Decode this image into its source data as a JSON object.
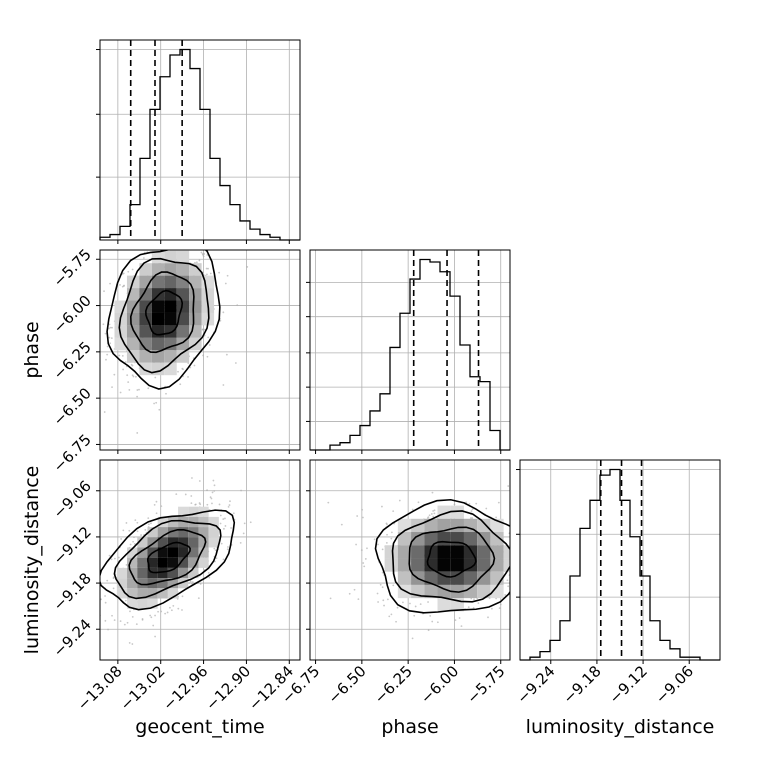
{
  "chart_data": {
    "type": "corner",
    "parameters": [
      "geocent_time",
      "phase",
      "luminosity_distance"
    ],
    "grid": true,
    "quantiles_shown": [
      0.16,
      0.5,
      0.84
    ],
    "colors": {
      "hist": "#000000",
      "points": "#b0b0b0",
      "grid": "#b0b0b0",
      "density_dark": "#000000",
      "density_light": "#ffffff"
    },
    "histograms": [
      {
        "param": "geocent_time",
        "range": [
          -13.105,
          -12.825
        ],
        "counts": [
          1,
          2,
          5,
          13,
          30,
          48,
          60,
          68,
          70,
          63,
          48,
          30,
          20,
          13,
          7,
          4,
          2,
          1,
          0,
          0
        ],
        "quantiles": [
          -13.062,
          -13.028,
          -12.99
        ],
        "ytick_fractions": [
          0.33,
          0.66,
          1.0
        ]
      },
      {
        "param": "phase",
        "range": [
          -6.78,
          -5.7
        ],
        "counts": [
          0,
          0,
          2,
          3,
          6,
          10,
          16,
          23,
          42,
          56,
          70,
          78,
          77,
          73,
          63,
          43,
          30,
          28,
          8,
          0
        ],
        "quantiles": [
          -6.22,
          -6.04,
          -5.87
        ],
        "ytick_fractions": [
          0.15,
          0.33,
          0.51,
          0.7,
          0.88
        ]
      },
      {
        "param": "luminosity_distance",
        "range": [
          -9.28,
          -9.02
        ],
        "counts": [
          0,
          1,
          3,
          7,
          14,
          30,
          47,
          57,
          66,
          68,
          57,
          44,
          30,
          14,
          7,
          4,
          1,
          1,
          0,
          0
        ],
        "quantiles": [
          -9.175,
          -9.148,
          -9.122
        ],
        "ytick_fractions": [
          0.33,
          0.66,
          1.0
        ]
      }
    ],
    "pairs": [
      {
        "x": "geocent_time",
        "y": "phase",
        "mean": [
          -13.015,
          -6.04
        ],
        "sd": [
          0.032,
          0.16
        ],
        "corr": 0.18
      },
      {
        "x": "geocent_time",
        "y": "luminosity_distance",
        "mean": [
          -13.01,
          -9.147
        ],
        "sd": [
          0.034,
          0.031
        ],
        "corr": 0.55
      },
      {
        "x": "phase",
        "y": "luminosity_distance",
        "mean": [
          -6.02,
          -9.148
        ],
        "sd": [
          0.17,
          0.03
        ],
        "corr": 0.0
      }
    ],
    "axis_ranges": {
      "geocent_time": [
        -13.105,
        -12.825
      ],
      "phase": [
        -6.78,
        -5.7
      ],
      "luminosity_distance": [
        -9.28,
        -9.02
      ]
    },
    "ticks": {
      "geocent_time": [
        {
          "value": -13.08,
          "label": "−13.08"
        },
        {
          "value": -13.02,
          "label": "−13.02"
        },
        {
          "value": -12.96,
          "label": "−12.96"
        },
        {
          "value": -12.9,
          "label": "−12.90"
        },
        {
          "value": -12.84,
          "label": "−12.84"
        }
      ],
      "phase": [
        {
          "value": -6.75,
          "label": "−6.75"
        },
        {
          "value": -6.5,
          "label": "−6.50"
        },
        {
          "value": -6.25,
          "label": "−6.25"
        },
        {
          "value": -6.0,
          "label": "−6.00"
        },
        {
          "value": -5.75,
          "label": "−5.75"
        }
      ],
      "luminosity_distance": [
        {
          "value": -9.24,
          "label": "−9.24"
        },
        {
          "value": -9.18,
          "label": "−9.18"
        },
        {
          "value": -9.12,
          "label": "−9.12"
        },
        {
          "value": -9.06,
          "label": "−9.06"
        }
      ]
    },
    "axis_labels": {
      "geocent_time": "geocent_time",
      "phase": "phase",
      "luminosity_distance": "luminosity_distance"
    }
  }
}
